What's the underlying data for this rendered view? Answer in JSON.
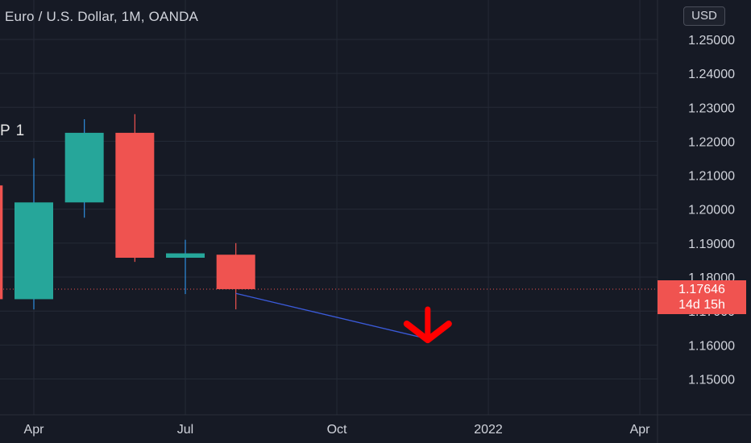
{
  "header": {
    "title": "Euro / U.S. Dollar, 1M, OANDA"
  },
  "side_label": "P 1",
  "currency_button": {
    "label": "USD"
  },
  "price_tag": {
    "price": "1.17646",
    "countdown": "14d 15h"
  },
  "colors": {
    "background": "#161a25",
    "grid": "#252a36",
    "up": "#26a69a",
    "down": "#ef5350",
    "wick": "#2f8ee0",
    "trend_line": "#3b5bdb",
    "arrow": "#ff0000",
    "axis_text": "#d1d4dc"
  },
  "chart_data": {
    "type": "candlestick",
    "title": "Euro / U.S. Dollar, 1M, OANDA",
    "series": [
      {
        "date": "2021-03",
        "open": 1.207,
        "high": 1.207,
        "low": 1.1735,
        "close": 1.1735
      },
      {
        "date": "2021-04",
        "open": 1.1735,
        "high": 1.215,
        "low": 1.1705,
        "close": 1.202
      },
      {
        "date": "2021-05",
        "open": 1.202,
        "high": 1.2265,
        "low": 1.1975,
        "close": 1.2225
      },
      {
        "date": "2021-06",
        "open": 1.2225,
        "high": 1.228,
        "low": 1.1845,
        "close": 1.1857
      },
      {
        "date": "2021-07",
        "open": 1.1857,
        "high": 1.191,
        "low": 1.175,
        "close": 1.187
      },
      {
        "date": "2021-08",
        "open": 1.1866,
        "high": 1.19,
        "low": 1.1705,
        "close": 1.17646
      }
    ],
    "ylim": [
      1.143,
      1.2545
    ],
    "y_ticks": [
      "1.15000",
      "1.16000",
      "1.17000",
      "1.18000",
      "1.19000",
      "1.20000",
      "1.21000",
      "1.22000",
      "1.23000",
      "1.24000",
      "1.25000"
    ],
    "x_ticks": [
      {
        "label": "Apr",
        "date": "2021-04"
      },
      {
        "label": "Jul",
        "date": "2021-07"
      },
      {
        "label": "Oct",
        "date": "2021-10"
      },
      {
        "label": "2022",
        "date": "2022-01"
      },
      {
        "label": "Apr",
        "date": "2022-04"
      }
    ],
    "current_price": 1.17646,
    "annotations": [
      {
        "type": "trend_line",
        "from": {
          "date": "2021-08",
          "price": 1.1752
        },
        "to": {
          "date": "2021-11-25",
          "price": 1.1618
        }
      },
      {
        "type": "arrow_down",
        "at": {
          "date": "2021-11-25",
          "price": 1.1615
        }
      }
    ],
    "grid": true
  }
}
